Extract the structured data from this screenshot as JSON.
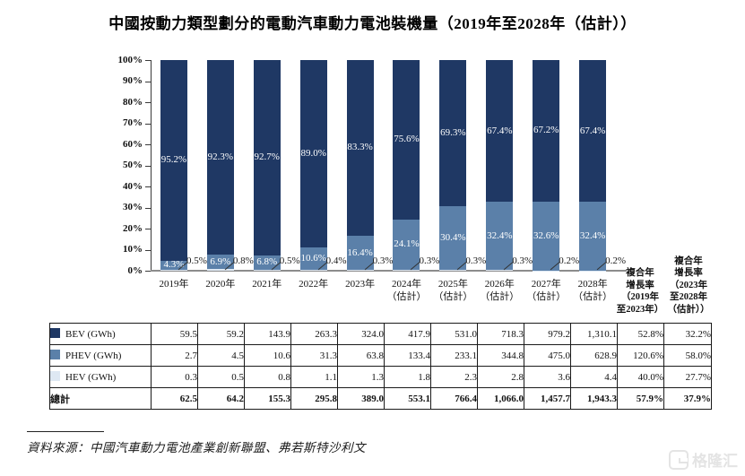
{
  "title": "中國按動力類型劃分的電動汽車動力電池裝機量（2019年至2028年（估計））",
  "chart_data": {
    "type": "bar",
    "stacked": true,
    "percent_stack": true,
    "title": "中國按動力類型劃分的電動汽車動力電池裝機量（2019年至2028年（估計））",
    "ylabel": "",
    "xlabel": "",
    "ylim": [
      0,
      100
    ],
    "y_tick_labels": [
      "0%",
      "10%",
      "20%",
      "30%",
      "40%",
      "50%",
      "60%",
      "70%",
      "80%",
      "90%",
      "100%"
    ],
    "categories": [
      "2019年",
      "2020年",
      "2021年",
      "2022年",
      "2023年",
      "2024年",
      "2025年",
      "2026年",
      "2027年",
      "2028年"
    ],
    "category_sublabels": [
      "",
      "",
      "",
      "",
      "",
      "（估計）",
      "（估計）",
      "（估計）",
      "（估計）",
      "（估計）"
    ],
    "series": [
      {
        "name": "BEV (GWh)",
        "color": "#1F3864",
        "label_color": "#ffffff",
        "share_pct": [
          95.2,
          92.3,
          92.7,
          89.0,
          83.3,
          75.6,
          69.3,
          67.4,
          67.2,
          67.4
        ],
        "values_gwh": [
          "59.5",
          "59.2",
          "143.9",
          "263.3",
          "324.0",
          "417.9",
          "531.0",
          "718.3",
          "979.2",
          "1,310.1"
        ],
        "cagr_2019_2023": "52.8%",
        "cagr_2023_2028": "32.2%"
      },
      {
        "name": "PHEV (GWh)",
        "color": "#5B80A9",
        "label_color": "#ffffff",
        "share_pct": [
          4.3,
          6.9,
          6.8,
          10.6,
          16.4,
          24.1,
          30.4,
          32.4,
          32.6,
          32.4
        ],
        "values_gwh": [
          "2.7",
          "4.5",
          "10.6",
          "31.3",
          "63.8",
          "133.4",
          "233.1",
          "344.8",
          "475.0",
          "628.9"
        ],
        "cagr_2019_2023": "120.6%",
        "cagr_2023_2028": "58.0%"
      },
      {
        "name": "HEV (GWh)",
        "color": "#DEE8F3",
        "label_color": "#1a1a1a",
        "label_outside": true,
        "share_pct": [
          0.5,
          0.8,
          0.5,
          0.4,
          0.3,
          0.3,
          0.3,
          0.3,
          0.2,
          0.2
        ],
        "values_gwh": [
          "0.3",
          "0.5",
          "0.8",
          "1.1",
          "1.3",
          "1.8",
          "2.3",
          "2.8",
          "3.6",
          "4.4"
        ],
        "cagr_2019_2023": "40.0%",
        "cagr_2023_2028": "27.7%"
      }
    ],
    "total_row": {
      "label": "總計",
      "values_gwh": [
        "62.5",
        "64.2",
        "155.3",
        "295.8",
        "389.0",
        "553.1",
        "766.4",
        "1,066.0",
        "1,457.7",
        "1,943.3"
      ],
      "cagr_2019_2023": "57.9%",
      "cagr_2023_2028": "37.9%"
    },
    "cagr_headers": [
      {
        "lines": [
          "複合年",
          "增長率",
          "（2019年",
          "至2023年）"
        ]
      },
      {
        "lines": [
          "複合年",
          "增長率",
          "（2023年",
          "至2028年",
          "（估計））"
        ]
      }
    ],
    "legend_position": "table-left-column",
    "grid": false
  },
  "source": "資料來源：中國汽車動力電池產業創新聯盟、弗若斯特沙利文",
  "watermark": {
    "text": "格隆汇"
  }
}
